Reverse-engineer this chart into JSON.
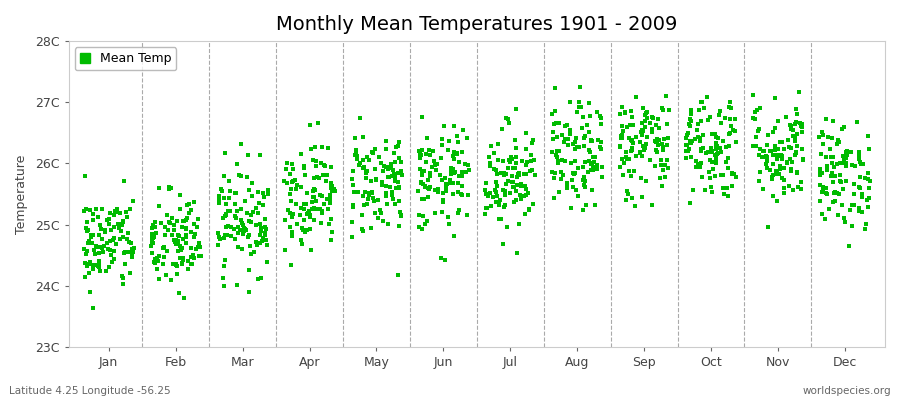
{
  "title": "Monthly Mean Temperatures 1901 - 2009",
  "ylabel": "Temperature",
  "xlabel_labels": [
    "Jan",
    "Feb",
    "Mar",
    "Apr",
    "May",
    "Jun",
    "Jul",
    "Aug",
    "Sep",
    "Oct",
    "Nov",
    "Dec"
  ],
  "ylim": [
    23.0,
    28.0
  ],
  "ytick_labels": [
    "23C",
    "24C",
    "25C",
    "26C",
    "27C",
    "28C"
  ],
  "ytick_values": [
    23,
    24,
    25,
    26,
    27,
    28
  ],
  "dot_color": "#00bb00",
  "legend_label": "Mean Temp",
  "subtitle_left": "Latitude 4.25 Longitude -56.25",
  "subtitle_right": "worldspecies.org",
  "background_color": "#ffffff",
  "plot_bg_color": "#ffffff",
  "seed": 42,
  "n_years": 109,
  "monthly_means": [
    24.7,
    24.7,
    25.1,
    25.5,
    25.7,
    25.7,
    25.8,
    26.1,
    26.3,
    26.3,
    26.2,
    25.8
  ],
  "monthly_stds": [
    0.4,
    0.42,
    0.44,
    0.44,
    0.44,
    0.44,
    0.44,
    0.44,
    0.44,
    0.44,
    0.44,
    0.44
  ],
  "marker_size": 5,
  "title_fontsize": 14,
  "tick_fontsize": 9,
  "label_fontsize": 9,
  "legend_fontsize": 9,
  "figsize": [
    9.0,
    4.0
  ],
  "dpi": 100
}
